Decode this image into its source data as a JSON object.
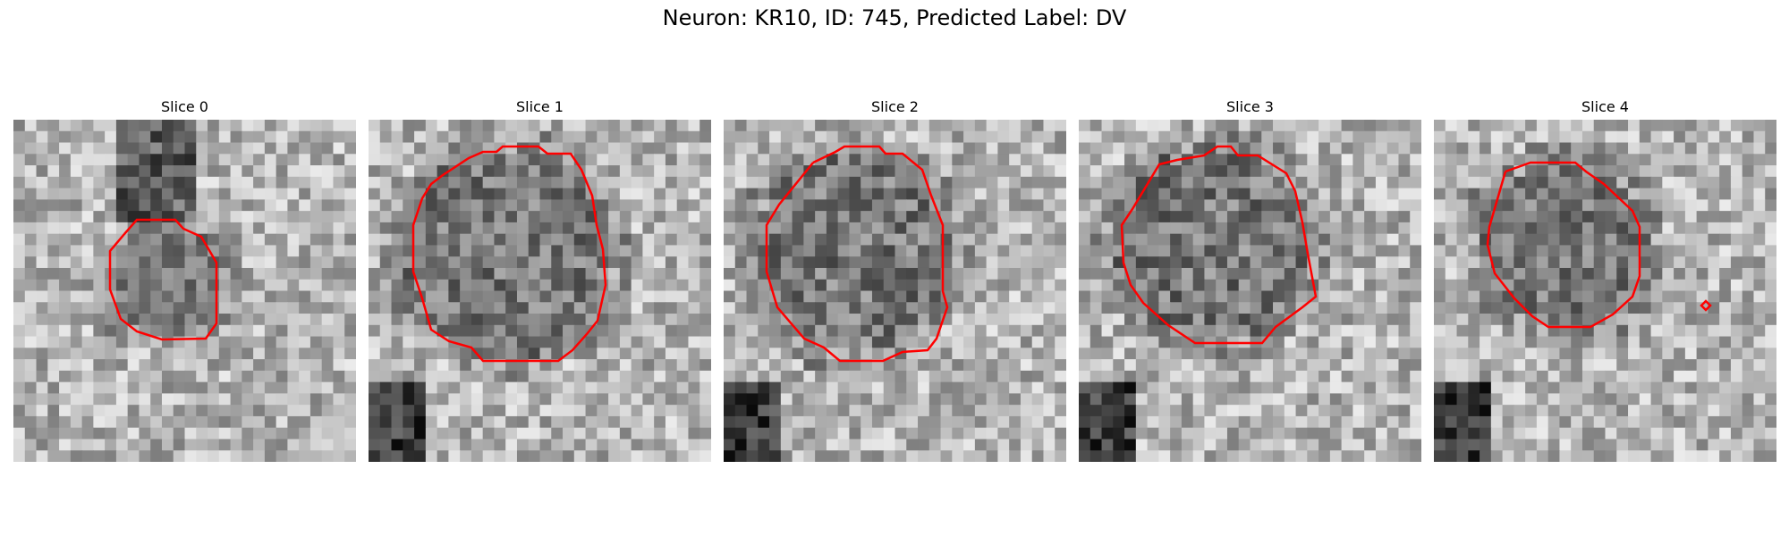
{
  "title": "Neuron: KR10, ID: 745, Predicted Label: DV",
  "panels": [
    {
      "label": "Slice 0"
    },
    {
      "label": "Slice 1"
    },
    {
      "label": "Slice 2"
    },
    {
      "label": "Slice 3"
    },
    {
      "label": "Slice 4"
    }
  ],
  "colors": {
    "contour": "#ff0000",
    "background": "#ffffff"
  },
  "image": {
    "colormap": "grayscale",
    "grid": 30
  }
}
